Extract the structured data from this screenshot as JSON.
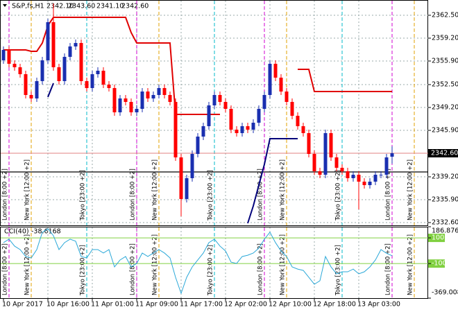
{
  "header": {
    "symbol": "S&P,fs,H1",
    "ohlc": [
      {
        "value": 2342.1,
        "label": "2342.10"
      },
      {
        "value": 2343.6,
        "label": "2343.60"
      },
      {
        "value": 2341.1,
        "label": "2341.10"
      },
      {
        "value": 2342.6,
        "label": "2342.60"
      }
    ]
  },
  "chart_data": [
    {
      "type": "candlestick",
      "categories": [
        "10 Apr 2017",
        null,
        null,
        null,
        null,
        null,
        null,
        null,
        "10 Apr 16:00",
        null,
        null,
        null,
        null,
        null,
        null,
        null,
        "11 Apr 01:00",
        null,
        null,
        null,
        null,
        null,
        null,
        null,
        "11 Apr 09:00",
        null,
        null,
        null,
        null,
        null,
        null,
        null,
        "11 Apr 17:00",
        null,
        null,
        null,
        null,
        null,
        null,
        null,
        "12 Apr 02:00",
        null,
        null,
        null,
        null,
        null,
        null,
        null,
        "12 Apr 10:00",
        null,
        null,
        null,
        null,
        null,
        null,
        null,
        "12 Apr 18:00",
        null,
        null,
        null,
        null,
        null,
        null,
        null,
        "13 Apr 03:00",
        null,
        null,
        null,
        null,
        null,
        null
      ],
      "open": [
        2356.0,
        2357.5,
        2355.5,
        2355.0,
        2354.0,
        2351.0,
        2350.5,
        2353.0,
        2356.0,
        2361.5,
        2355.0,
        2353.0,
        2356.5,
        2358.0,
        2358.5,
        2353.0,
        2352.0,
        2354.0,
        2354.5,
        2352.5,
        2352.0,
        2348.5,
        2350.5,
        2350.0,
        2348.5,
        2349.0,
        2351.5,
        2350.5,
        2351.0,
        2352.0,
        2351.0,
        2350.0,
        2342.0,
        2336.0,
        2339.0,
        2342.5,
        2345.0,
        2346.5,
        2349.5,
        2351.0,
        2350.0,
        2349.0,
        2346.0,
        2345.5,
        2346.5,
        2346.0,
        2347.0,
        2349.0,
        2351.0,
        2355.5,
        2353.5,
        2351.5,
        2350.0,
        2348.0,
        2346.5,
        2345.5,
        2342.5,
        2340.0,
        2339.5,
        2345.5,
        2342.0,
        2340.5,
        2340.0,
        2339.0,
        2339.5,
        2338.5,
        2338.0,
        2338.5,
        2339.5,
        2339.5,
        2342.1
      ],
      "high": [
        2358.0,
        2358.0,
        2356.0,
        2355.5,
        2354.5,
        2351.5,
        2353.5,
        2356.5,
        2362.0,
        2364.2,
        2355.5,
        2357.0,
        2358.5,
        2359.0,
        2359.0,
        2353.5,
        2354.5,
        2355.0,
        2355.0,
        2353.0,
        2352.5,
        2351.0,
        2351.0,
        2350.5,
        2349.5,
        2352.0,
        2352.0,
        2351.5,
        2352.5,
        2352.5,
        2351.5,
        2350.5,
        2342.5,
        2339.5,
        2343.0,
        2345.5,
        2347.0,
        2350.0,
        2351.5,
        2351.5,
        2350.5,
        2349.5,
        2346.5,
        2347.0,
        2347.0,
        2347.5,
        2349.5,
        2351.5,
        2356.0,
        2356.0,
        2354.0,
        2352.0,
        2350.5,
        2348.5,
        2347.0,
        2346.0,
        2343.0,
        2340.5,
        2346.0,
        2346.0,
        2342.5,
        2341.0,
        2340.5,
        2340.0,
        2340.0,
        2339.0,
        2339.0,
        2340.0,
        2340.0,
        2342.5,
        2343.6
      ],
      "low": [
        2355.5,
        2355.0,
        2354.5,
        2353.5,
        2350.5,
        2350.0,
        2350.0,
        2352.5,
        2355.5,
        2354.5,
        2352.5,
        2352.5,
        2356.0,
        2357.5,
        2352.5,
        2351.5,
        2351.5,
        2353.5,
        2352.0,
        2351.5,
        2348.0,
        2348.0,
        2349.5,
        2348.0,
        2348.0,
        2348.5,
        2350.0,
        2350.0,
        2350.5,
        2350.5,
        2349.5,
        2341.5,
        2333.5,
        2335.5,
        2338.5,
        2342.0,
        2344.5,
        2346.0,
        2349.0,
        2349.5,
        2348.5,
        2345.5,
        2345.0,
        2345.0,
        2345.5,
        2345.5,
        2346.5,
        2348.5,
        2350.5,
        2353.0,
        2351.0,
        2349.5,
        2347.5,
        2346.0,
        2345.0,
        2342.0,
        2339.5,
        2339.0,
        2339.0,
        2341.5,
        2340.0,
        2339.5,
        2338.5,
        2338.5,
        2334.5,
        2337.5,
        2337.5,
        2338.0,
        2339.0,
        2339.0,
        2341.1
      ],
      "close": [
        2357.5,
        2355.5,
        2355.0,
        2354.0,
        2351.0,
        2350.5,
        2353.0,
        2356.0,
        2361.5,
        2355.0,
        2353.0,
        2356.5,
        2358.0,
        2358.5,
        2353.0,
        2352.0,
        2354.0,
        2354.5,
        2352.5,
        2352.0,
        2348.5,
        2350.5,
        2350.0,
        2348.5,
        2349.0,
        2351.5,
        2350.5,
        2351.0,
        2352.0,
        2351.0,
        2350.0,
        2342.0,
        2336.0,
        2339.0,
        2342.5,
        2345.0,
        2346.5,
        2349.5,
        2351.0,
        2350.0,
        2349.0,
        2346.0,
        2345.5,
        2346.5,
        2346.0,
        2347.0,
        2349.0,
        2351.0,
        2355.5,
        2353.5,
        2351.5,
        2350.0,
        2348.0,
        2346.5,
        2345.5,
        2342.5,
        2340.0,
        2339.5,
        2345.5,
        2342.0,
        2340.5,
        2340.0,
        2339.0,
        2339.5,
        2338.5,
        2338.0,
        2338.5,
        2339.5,
        2339.5,
        2342.0,
        2342.6
      ],
      "up_color": "#1a2fb0",
      "down_color": "#ff0000",
      "ylim": [
        2332.2,
        2364.7
      ],
      "yticks": [
        {
          "value": 2362.5,
          "label": "2362.50"
        },
        {
          "value": 2359.2,
          "label": "2359.20"
        },
        {
          "value": 2355.9,
          "label": "2355.90"
        },
        {
          "value": 2352.5,
          "label": "2352.50"
        },
        {
          "value": 2349.2,
          "label": "2349.20"
        },
        {
          "value": 2345.9,
          "label": "2345.90"
        },
        {
          "value": 2339.2,
          "label": "2339.20"
        },
        {
          "value": 2335.9,
          "label": "2335.90"
        },
        {
          "value": 2332.6,
          "label": "2332.60"
        }
      ],
      "grid": true,
      "current_price": {
        "value": 2342.6,
        "label": "2342.60"
      },
      "hline": 2339.9,
      "overlays": [
        {
          "color": "#e00000",
          "values": [
            2357.5,
            2357.5,
            2357.5,
            2357.5,
            2357.5,
            2357.3,
            2357.3,
            2358.5,
            2361.0,
            2362.2,
            2362.2,
            2362.2,
            2362.2,
            2362.2,
            2362.2,
            2362.2,
            2362.2,
            2362.2,
            2362.2,
            2362.2,
            2362.2,
            2362.2,
            2362.2,
            2360.0,
            2358.5,
            2358.5,
            2358.5,
            2358.5,
            2358.5,
            2358.5,
            2358.5,
            2348.2,
            2348.2,
            2348.2,
            2348.2,
            2348.2,
            2348.2,
            2348.2,
            2348.2,
            2348.2,
            null,
            null,
            null,
            null,
            null,
            null,
            null,
            null,
            null,
            null,
            null,
            null,
            null,
            2354.7,
            2354.7,
            2354.7,
            2351.5,
            2351.5,
            2351.5,
            2351.5,
            2351.5,
            2351.5,
            2351.5,
            2351.5,
            2351.5,
            2351.5,
            2351.5,
            2351.5,
            2351.5,
            2351.5,
            2351.5
          ]
        },
        {
          "color": "#00007a",
          "values": [
            null,
            null,
            null,
            null,
            null,
            null,
            null,
            null,
            2350.7,
            2352.7,
            null,
            null,
            null,
            null,
            null,
            null,
            null,
            null,
            null,
            null,
            null,
            null,
            null,
            null,
            null,
            null,
            null,
            null,
            null,
            null,
            null,
            null,
            null,
            null,
            null,
            null,
            null,
            null,
            null,
            null,
            null,
            null,
            null,
            null,
            2332.5,
            2335.0,
            2338.0,
            2341.0,
            2344.7,
            2344.7,
            2344.7,
            2344.7,
            2344.7,
            2344.7,
            null,
            null,
            null,
            null,
            null,
            null,
            null,
            null,
            null,
            null,
            null,
            null,
            null,
            null,
            null,
            null,
            null
          ]
        }
      ],
      "sessions": [
        {
          "label": "London [8:00 +2]",
          "color": "#d000d0",
          "bars": [
            1,
            24,
            47,
            70
          ]
        },
        {
          "label": "New York [12:00 +2]",
          "color": "#e0a000",
          "bars": [
            5,
            28,
            51,
            74
          ]
        },
        {
          "label": "Tokyo [23:00 +2]",
          "color": "#00b8c8",
          "bars": [
            15,
            38,
            61
          ]
        }
      ]
    },
    {
      "type": "line",
      "title": "CCI(40)",
      "color": "#2aa8d8",
      "values": [
        63,
        90,
        36,
        9,
        -45,
        -56,
        9,
        144,
        171,
        117,
        9,
        63,
        90,
        74,
        -45,
        -56,
        9,
        9,
        -18,
        9,
        -126,
        -72,
        -45,
        -126,
        -99,
        -18,
        -45,
        -18,
        9,
        -18,
        -56,
        -207,
        -332,
        -207,
        -126,
        -72,
        -18,
        63,
        90,
        36,
        -2,
        -89,
        -99,
        -45,
        -35,
        -18,
        20,
        90,
        144,
        63,
        -2,
        -45,
        -126,
        -143,
        -153,
        -207,
        -261,
        -234,
        -45,
        -126,
        -180,
        -164,
        -164,
        -143,
        -180,
        -164,
        -126,
        -72,
        9,
        -20,
        -38.6168
      ],
      "ylim": [
        -369.0088,
        186.8766
      ],
      "yticks": [
        186.8766,
        100,
        -100,
        -369.0088
      ],
      "levels": [
        100,
        -100
      ],
      "level_color": "#80d040"
    }
  ]
}
